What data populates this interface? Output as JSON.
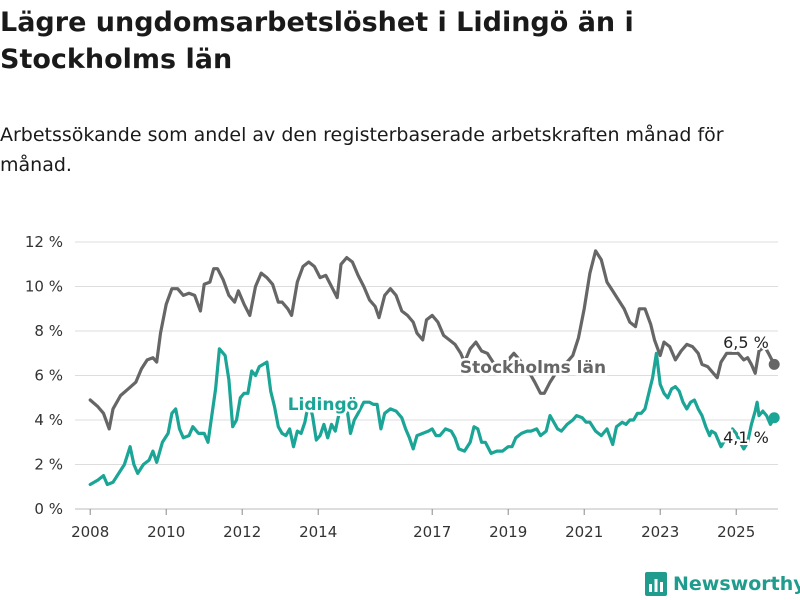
{
  "title": "Lägre ungdomsarbetslöshet i Lidingö än i Stockholms län",
  "subtitle": "Arbetssökande som andel av den registerbaserade arbetskraften månad för månad.",
  "brand": "Newsworthy",
  "colors": {
    "stockholm": "#666666",
    "lidingo": "#1aa596",
    "grid": "#dddddd",
    "brand": "#1f9c8e"
  },
  "chart_data": {
    "type": "line",
    "xlim": [
      2007.6,
      2026.1
    ],
    "ylim": [
      0,
      12
    ],
    "x_ticks": [
      2008,
      2010,
      2012,
      2014,
      2017,
      2019,
      2021,
      2023,
      2025
    ],
    "y_ticks": [
      {
        "v": 0,
        "label": "0 %"
      },
      {
        "v": 2,
        "label": "2 %"
      },
      {
        "v": 4,
        "label": "4 %"
      },
      {
        "v": 6,
        "label": "6 %"
      },
      {
        "v": 8,
        "label": "8 %"
      },
      {
        "v": 10,
        "label": "10 %"
      },
      {
        "v": 12,
        "label": "12 %"
      }
    ],
    "grid": true,
    "series": [
      {
        "name": "Stockholms län",
        "color": "#666666",
        "end_label": "6,5 %",
        "points": [
          [
            2008.0,
            4.9
          ],
          [
            2008.2,
            4.6
          ],
          [
            2008.35,
            4.3
          ],
          [
            2008.5,
            3.6
          ],
          [
            2008.6,
            4.5
          ],
          [
            2008.8,
            5.1
          ],
          [
            2009.0,
            5.4
          ],
          [
            2009.2,
            5.7
          ],
          [
            2009.35,
            6.3
          ],
          [
            2009.5,
            6.7
          ],
          [
            2009.65,
            6.8
          ],
          [
            2009.75,
            6.6
          ],
          [
            2009.85,
            7.9
          ],
          [
            2010.0,
            9.2
          ],
          [
            2010.15,
            9.9
          ],
          [
            2010.3,
            9.9
          ],
          [
            2010.45,
            9.6
          ],
          [
            2010.6,
            9.7
          ],
          [
            2010.75,
            9.6
          ],
          [
            2010.9,
            8.9
          ],
          [
            2011.0,
            10.1
          ],
          [
            2011.15,
            10.2
          ],
          [
            2011.25,
            10.8
          ],
          [
            2011.35,
            10.8
          ],
          [
            2011.5,
            10.3
          ],
          [
            2011.65,
            9.6
          ],
          [
            2011.8,
            9.3
          ],
          [
            2011.9,
            9.8
          ],
          [
            2012.05,
            9.2
          ],
          [
            2012.2,
            8.7
          ],
          [
            2012.35,
            10.0
          ],
          [
            2012.5,
            10.6
          ],
          [
            2012.65,
            10.4
          ],
          [
            2012.8,
            10.1
          ],
          [
            2012.95,
            9.3
          ],
          [
            2013.05,
            9.3
          ],
          [
            2013.2,
            9.0
          ],
          [
            2013.3,
            8.7
          ],
          [
            2013.45,
            10.2
          ],
          [
            2013.6,
            10.9
          ],
          [
            2013.75,
            11.1
          ],
          [
            2013.9,
            10.9
          ],
          [
            2014.05,
            10.4
          ],
          [
            2014.2,
            10.5
          ],
          [
            2014.35,
            10.0
          ],
          [
            2014.5,
            9.5
          ],
          [
            2014.6,
            11.0
          ],
          [
            2014.75,
            11.3
          ],
          [
            2014.9,
            11.1
          ],
          [
            2015.05,
            10.5
          ],
          [
            2015.2,
            10.0
          ],
          [
            2015.35,
            9.4
          ],
          [
            2015.5,
            9.1
          ],
          [
            2015.6,
            8.6
          ],
          [
            2015.75,
            9.6
          ],
          [
            2015.9,
            9.9
          ],
          [
            2016.05,
            9.6
          ],
          [
            2016.2,
            8.9
          ],
          [
            2016.35,
            8.7
          ],
          [
            2016.5,
            8.4
          ],
          [
            2016.6,
            7.9
          ],
          [
            2016.75,
            7.6
          ],
          [
            2016.85,
            8.5
          ],
          [
            2017.0,
            8.7
          ],
          [
            2017.15,
            8.4
          ],
          [
            2017.3,
            7.8
          ],
          [
            2017.45,
            7.6
          ],
          [
            2017.6,
            7.4
          ],
          [
            2017.75,
            7.0
          ],
          [
            2017.85,
            6.6
          ],
          [
            2018.0,
            7.2
          ],
          [
            2018.15,
            7.5
          ],
          [
            2018.3,
            7.1
          ],
          [
            2018.45,
            7.0
          ],
          [
            2018.6,
            6.6
          ],
          [
            2018.75,
            6.4
          ],
          [
            2018.9,
            6.4
          ],
          [
            2019.0,
            6.7
          ],
          [
            2019.15,
            7.0
          ],
          [
            2019.3,
            6.7
          ],
          [
            2019.45,
            6.3
          ],
          [
            2019.6,
            6.0
          ],
          [
            2019.7,
            5.7
          ],
          [
            2019.85,
            5.2
          ],
          [
            2019.95,
            5.2
          ],
          [
            2020.1,
            5.7
          ],
          [
            2020.25,
            6.1
          ],
          [
            2020.4,
            6.5
          ],
          [
            2020.55,
            6.6
          ],
          [
            2020.7,
            6.9
          ],
          [
            2020.85,
            7.7
          ],
          [
            2021.0,
            9.0
          ],
          [
            2021.15,
            10.6
          ],
          [
            2021.3,
            11.6
          ],
          [
            2021.45,
            11.2
          ],
          [
            2021.6,
            10.2
          ],
          [
            2021.75,
            9.8
          ],
          [
            2021.9,
            9.4
          ],
          [
            2022.05,
            9.0
          ],
          [
            2022.2,
            8.4
          ],
          [
            2022.35,
            8.2
          ],
          [
            2022.45,
            9.0
          ],
          [
            2022.6,
            9.0
          ],
          [
            2022.75,
            8.3
          ],
          [
            2022.85,
            7.6
          ],
          [
            2023.0,
            6.9
          ],
          [
            2023.1,
            7.5
          ],
          [
            2023.25,
            7.3
          ],
          [
            2023.4,
            6.7
          ],
          [
            2023.55,
            7.1
          ],
          [
            2023.7,
            7.4
          ],
          [
            2023.85,
            7.3
          ],
          [
            2024.0,
            7.0
          ],
          [
            2024.1,
            6.5
          ],
          [
            2024.25,
            6.4
          ],
          [
            2024.4,
            6.1
          ],
          [
            2024.5,
            5.9
          ],
          [
            2024.6,
            6.6
          ],
          [
            2024.75,
            7.0
          ],
          [
            2024.9,
            7.0
          ],
          [
            2025.05,
            7.0
          ],
          [
            2025.2,
            6.7
          ],
          [
            2025.3,
            6.8
          ],
          [
            2025.4,
            6.5
          ],
          [
            2025.5,
            6.1
          ],
          [
            2025.6,
            7.1
          ],
          [
            2025.75,
            7.3
          ],
          [
            2025.85,
            7.0
          ],
          [
            2026.0,
            6.5
          ]
        ]
      },
      {
        "name": "Lidingö",
        "color": "#1aa596",
        "end_label": "4,1 %",
        "points": [
          [
            2008.0,
            1.1
          ],
          [
            2008.2,
            1.3
          ],
          [
            2008.35,
            1.5
          ],
          [
            2008.45,
            1.1
          ],
          [
            2008.6,
            1.2
          ],
          [
            2008.75,
            1.6
          ],
          [
            2008.9,
            2.0
          ],
          [
            2009.05,
            2.8
          ],
          [
            2009.15,
            2.0
          ],
          [
            2009.25,
            1.6
          ],
          [
            2009.4,
            2.0
          ],
          [
            2009.55,
            2.2
          ],
          [
            2009.65,
            2.6
          ],
          [
            2009.75,
            2.1
          ],
          [
            2009.9,
            3.0
          ],
          [
            2010.05,
            3.4
          ],
          [
            2010.15,
            4.3
          ],
          [
            2010.25,
            4.5
          ],
          [
            2010.35,
            3.6
          ],
          [
            2010.45,
            3.2
          ],
          [
            2010.6,
            3.3
          ],
          [
            2010.7,
            3.7
          ],
          [
            2010.85,
            3.4
          ],
          [
            2011.0,
            3.4
          ],
          [
            2011.1,
            3.0
          ],
          [
            2011.2,
            4.2
          ],
          [
            2011.3,
            5.4
          ],
          [
            2011.4,
            7.2
          ],
          [
            2011.55,
            6.9
          ],
          [
            2011.65,
            5.8
          ],
          [
            2011.75,
            3.7
          ],
          [
            2011.85,
            4.0
          ],
          [
            2011.95,
            5.0
          ],
          [
            2012.05,
            5.2
          ],
          [
            2012.15,
            5.2
          ],
          [
            2012.25,
            6.2
          ],
          [
            2012.35,
            6.0
          ],
          [
            2012.45,
            6.4
          ],
          [
            2012.55,
            6.5
          ],
          [
            2012.65,
            6.6
          ],
          [
            2012.75,
            5.3
          ],
          [
            2012.85,
            4.6
          ],
          [
            2012.95,
            3.7
          ],
          [
            2013.05,
            3.4
          ],
          [
            2013.15,
            3.3
          ],
          [
            2013.25,
            3.6
          ],
          [
            2013.35,
            2.8
          ],
          [
            2013.45,
            3.5
          ],
          [
            2013.55,
            3.4
          ],
          [
            2013.65,
            3.9
          ],
          [
            2013.75,
            4.8
          ],
          [
            2013.85,
            4.2
          ],
          [
            2013.95,
            3.1
          ],
          [
            2014.05,
            3.3
          ],
          [
            2014.15,
            3.8
          ],
          [
            2014.25,
            3.2
          ],
          [
            2014.35,
            3.8
          ],
          [
            2014.45,
            3.5
          ],
          [
            2014.55,
            4.3
          ],
          [
            2014.65,
            4.4
          ],
          [
            2014.75,
            4.6
          ],
          [
            2014.85,
            3.4
          ],
          [
            2014.95,
            4.0
          ],
          [
            2015.05,
            4.3
          ],
          [
            2015.2,
            4.8
          ],
          [
            2015.35,
            4.8
          ],
          [
            2015.45,
            4.7
          ],
          [
            2015.55,
            4.7
          ],
          [
            2015.65,
            3.6
          ],
          [
            2015.75,
            4.3
          ],
          [
            2015.9,
            4.5
          ],
          [
            2016.05,
            4.4
          ],
          [
            2016.2,
            4.1
          ],
          [
            2016.3,
            3.6
          ],
          [
            2016.4,
            3.2
          ],
          [
            2016.5,
            2.7
          ],
          [
            2016.6,
            3.3
          ],
          [
            2016.75,
            3.4
          ],
          [
            2016.9,
            3.5
          ],
          [
            2017.0,
            3.6
          ],
          [
            2017.1,
            3.3
          ],
          [
            2017.2,
            3.3
          ],
          [
            2017.35,
            3.6
          ],
          [
            2017.5,
            3.5
          ],
          [
            2017.6,
            3.2
          ],
          [
            2017.7,
            2.7
          ],
          [
            2017.85,
            2.6
          ],
          [
            2018.0,
            3.0
          ],
          [
            2018.1,
            3.7
          ],
          [
            2018.2,
            3.6
          ],
          [
            2018.3,
            3.0
          ],
          [
            2018.4,
            3.0
          ],
          [
            2018.55,
            2.5
          ],
          [
            2018.7,
            2.6
          ],
          [
            2018.85,
            2.6
          ],
          [
            2019.0,
            2.8
          ],
          [
            2019.1,
            2.8
          ],
          [
            2019.2,
            3.2
          ],
          [
            2019.35,
            3.4
          ],
          [
            2019.5,
            3.5
          ],
          [
            2019.6,
            3.5
          ],
          [
            2019.75,
            3.6
          ],
          [
            2019.85,
            3.3
          ],
          [
            2020.0,
            3.5
          ],
          [
            2020.1,
            4.2
          ],
          [
            2020.2,
            3.9
          ],
          [
            2020.3,
            3.6
          ],
          [
            2020.4,
            3.5
          ],
          [
            2020.55,
            3.8
          ],
          [
            2020.7,
            4.0
          ],
          [
            2020.8,
            4.2
          ],
          [
            2020.95,
            4.1
          ],
          [
            2021.05,
            3.9
          ],
          [
            2021.15,
            3.9
          ],
          [
            2021.3,
            3.5
          ],
          [
            2021.45,
            3.3
          ],
          [
            2021.6,
            3.6
          ],
          [
            2021.75,
            2.9
          ],
          [
            2021.85,
            3.7
          ],
          [
            2022.0,
            3.9
          ],
          [
            2022.1,
            3.8
          ],
          [
            2022.2,
            4.0
          ],
          [
            2022.3,
            4.0
          ],
          [
            2022.4,
            4.3
          ],
          [
            2022.5,
            4.3
          ],
          [
            2022.6,
            4.5
          ],
          [
            2022.7,
            5.2
          ],
          [
            2022.8,
            5.9
          ],
          [
            2022.9,
            7.0
          ],
          [
            2023.0,
            5.6
          ],
          [
            2023.1,
            5.2
          ],
          [
            2023.2,
            5.0
          ],
          [
            2023.3,
            5.4
          ],
          [
            2023.4,
            5.5
          ],
          [
            2023.5,
            5.3
          ],
          [
            2023.6,
            4.8
          ],
          [
            2023.7,
            4.5
          ],
          [
            2023.8,
            4.8
          ],
          [
            2023.9,
            4.9
          ],
          [
            2024.0,
            4.5
          ],
          [
            2024.1,
            4.2
          ],
          [
            2024.2,
            3.7
          ],
          [
            2024.3,
            3.3
          ],
          [
            2024.35,
            3.5
          ],
          [
            2024.45,
            3.4
          ],
          [
            2024.55,
            3.0
          ],
          [
            2024.6,
            2.8
          ],
          [
            2024.7,
            3.1
          ],
          [
            2024.8,
            3.4
          ],
          [
            2024.9,
            3.6
          ],
          [
            2025.0,
            3.4
          ],
          [
            2025.1,
            3.0
          ],
          [
            2025.2,
            2.7
          ],
          [
            2025.3,
            3.0
          ],
          [
            2025.4,
            3.8
          ],
          [
            2025.5,
            4.4
          ],
          [
            2025.55,
            4.8
          ],
          [
            2025.6,
            4.2
          ],
          [
            2025.7,
            4.4
          ],
          [
            2025.8,
            4.2
          ],
          [
            2025.9,
            3.8
          ],
          [
            2026.0,
            4.1
          ]
        ]
      }
    ]
  }
}
